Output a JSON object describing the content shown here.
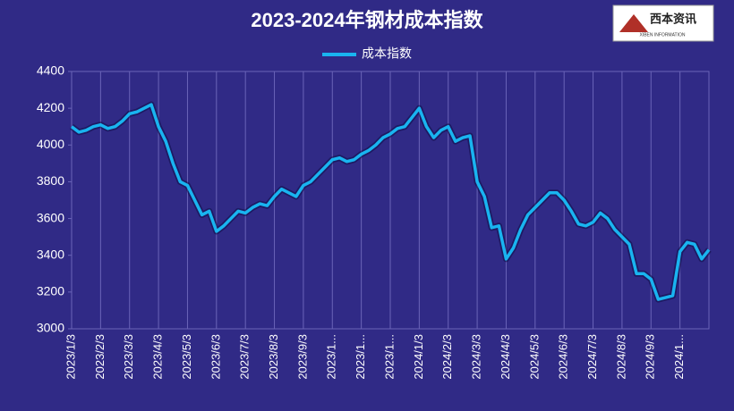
{
  "chart_data": {
    "type": "line",
    "title": "2023-2024年钢材成本指数",
    "logo": {
      "text": "西本资讯",
      "subtext": "XIBEN INFORMATION"
    },
    "categories": [
      "2023/1/3",
      null,
      null,
      null,
      "2023/2/3",
      null,
      null,
      null,
      "2023/3/3",
      null,
      null,
      null,
      "2023/4/3",
      null,
      null,
      null,
      "2023/5/3",
      null,
      null,
      null,
      "2023/6/3",
      null,
      null,
      null,
      "2023/7/3",
      null,
      null,
      null,
      "2023/8/3",
      null,
      null,
      null,
      "2023/9/3",
      null,
      null,
      null,
      "2023/1...",
      null,
      null,
      null,
      "2023/1...",
      null,
      null,
      null,
      "2023/1...",
      null,
      null,
      null,
      "2024/1/3",
      null,
      null,
      null,
      "2024/2/3",
      null,
      null,
      null,
      "2024/3/3",
      null,
      null,
      null,
      "2024/4/3",
      null,
      null,
      null,
      "2024/5/3",
      null,
      null,
      null,
      "2024/6/3",
      null,
      null,
      null,
      "2024/7/3",
      null,
      null,
      null,
      "2024/8/3",
      null,
      null,
      null,
      "2024/9/3",
      null,
      null,
      null,
      "2024/1...",
      null,
      null,
      null,
      null
    ],
    "series": [
      {
        "name": "成本指数",
        "color": "#19b4f0",
        "values": [
          4100,
          4070,
          4080,
          4100,
          4110,
          4090,
          4100,
          4130,
          4170,
          4180,
          4200,
          4220,
          4100,
          4020,
          3900,
          3800,
          3780,
          3700,
          3620,
          3640,
          3530,
          3560,
          3600,
          3640,
          3630,
          3660,
          3680,
          3670,
          3720,
          3760,
          3740,
          3720,
          3780,
          3800,
          3840,
          3880,
          3920,
          3930,
          3910,
          3920,
          3950,
          3970,
          4000,
          4040,
          4060,
          4090,
          4100,
          4150,
          4200,
          4100,
          4040,
          4080,
          4100,
          4020,
          4040,
          4050,
          3800,
          3720,
          3550,
          3560,
          3380,
          3440,
          3540,
          3620,
          3660,
          3700,
          3740,
          3740,
          3700,
          3640,
          3570,
          3560,
          3580,
          3630,
          3600,
          3540,
          3500,
          3460,
          3300,
          3300,
          3270,
          3160,
          3170,
          3180,
          3420,
          3470,
          3460,
          3380,
          3430
        ]
      }
    ],
    "ylim": [
      3000,
      4400
    ],
    "yticks": [
      3000,
      3200,
      3400,
      3600,
      3800,
      4000,
      4200,
      4400
    ],
    "grid": "x",
    "legend": "top"
  }
}
